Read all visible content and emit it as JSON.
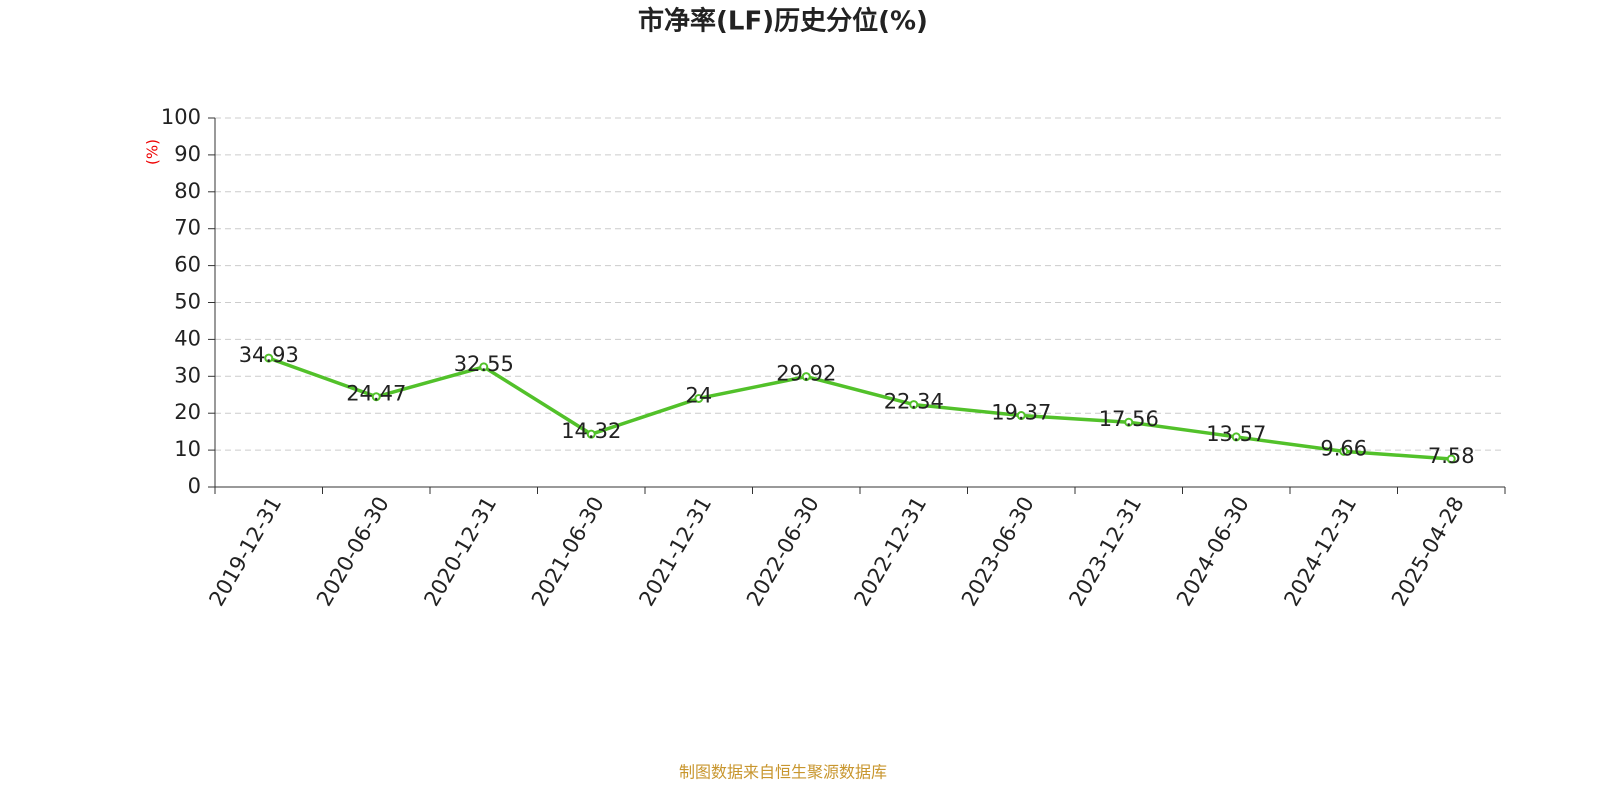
{
  "chart_data": {
    "type": "line",
    "title": "市净率(LF)历史分位(%)",
    "y_label": "(%)",
    "source": "制图数据来自恒生聚源数据库",
    "categories": [
      "2019-12-31",
      "2020-06-30",
      "2020-12-31",
      "2021-06-30",
      "2021-12-31",
      "2022-06-30",
      "2022-12-31",
      "2023-06-30",
      "2023-12-31",
      "2024-06-30",
      "2024-12-31",
      "2025-04-28"
    ],
    "series": [
      {
        "name": "市净率(LF)历史分位",
        "color": "#52c12a",
        "values": [
          34.93,
          24.47,
          32.55,
          14.32,
          24,
          29.92,
          22.34,
          19.37,
          17.56,
          13.57,
          9.66,
          7.58
        ]
      }
    ],
    "ylim": [
      0,
      100
    ],
    "yticks": [
      0,
      10,
      20,
      30,
      40,
      50,
      60,
      70,
      80,
      90,
      100
    ],
    "grid": true
  }
}
